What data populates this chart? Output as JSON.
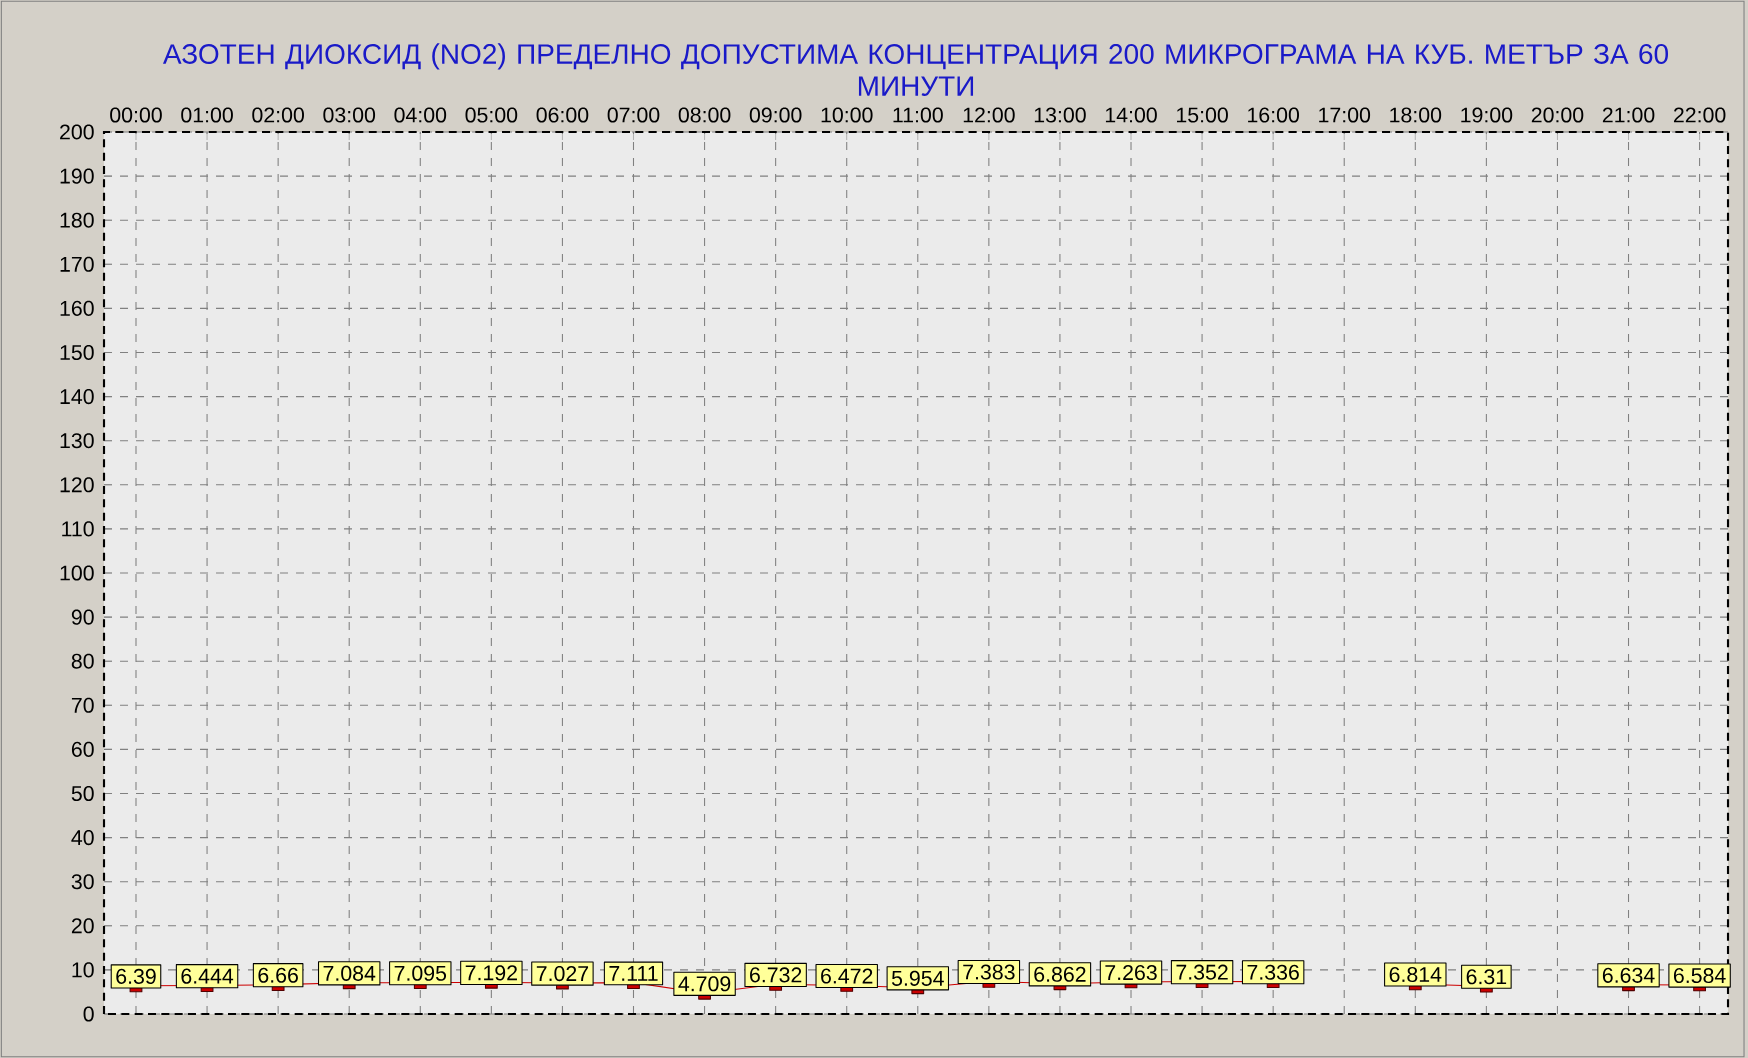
{
  "chart_data": {
    "type": "line",
    "title": "АЗОТЕН ДИОКСИД   (NO2)     ПРЕДЕЛНО ДОПУСТИМА КОНЦЕНТРАЦИЯ 200 МИКРОГРАМА  НА КУБ. МЕТЪР ЗА 60 МИНУТИ",
    "categories": [
      "00:00",
      "01:00",
      "02:00",
      "03:00",
      "04:00",
      "05:00",
      "06:00",
      "07:00",
      "08:00",
      "09:00",
      "10:00",
      "11:00",
      "12:00",
      "13:00",
      "14:00",
      "15:00",
      "16:00",
      "17:00",
      "18:00",
      "19:00",
      "20:00",
      "21:00",
      "22:00"
    ],
    "values": [
      6.39,
      6.444,
      6.66,
      7.084,
      7.095,
      7.192,
      7.027,
      7.111,
      4.709,
      6.732,
      6.472,
      5.954,
      7.383,
      6.862,
      7.263,
      7.352,
      7.336,
      null,
      6.814,
      6.31,
      null,
      6.634,
      6.584
    ],
    "color": "#cc0000",
    "marker": "square",
    "line_style": "solid",
    "ylim": [
      0,
      200
    ],
    "yticks": [
      0,
      10,
      20,
      30,
      40,
      50,
      60,
      70,
      80,
      90,
      100,
      110,
      120,
      130,
      140,
      150,
      160,
      170,
      180,
      190,
      200
    ],
    "grid": true,
    "data_labels": true
  }
}
